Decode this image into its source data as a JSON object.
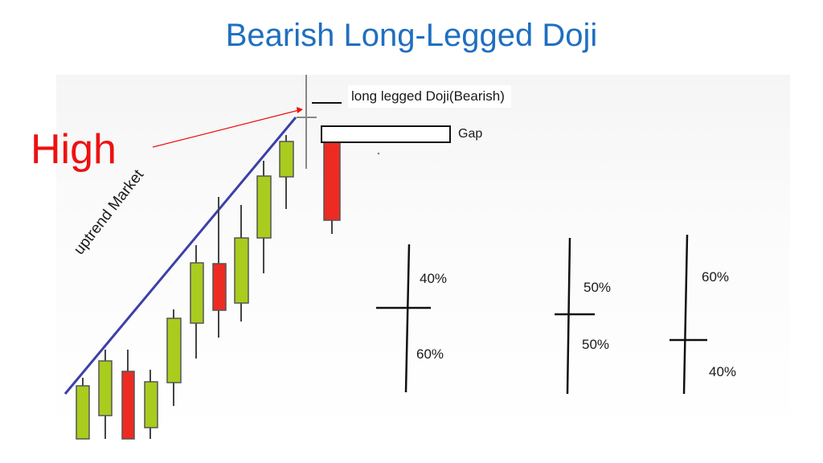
{
  "title": "Bearish Long-Legged Doji",
  "labels": {
    "high": "High",
    "uptrend": "uptrend Market",
    "doji": "long legged Doji(Bearish)",
    "gap": "Gap"
  },
  "colors": {
    "title": "#1f6fc0",
    "bullish": "#a9cc1e",
    "bearish": "#ee2b22",
    "trendline": "#3c3fa8",
    "high_arrow": "#ee1111"
  },
  "examples": [
    {
      "upper": "40%",
      "lower": "60%"
    },
    {
      "upper": "50%",
      "lower": "50%"
    },
    {
      "upper": "60%",
      "lower": "40%"
    }
  ]
}
